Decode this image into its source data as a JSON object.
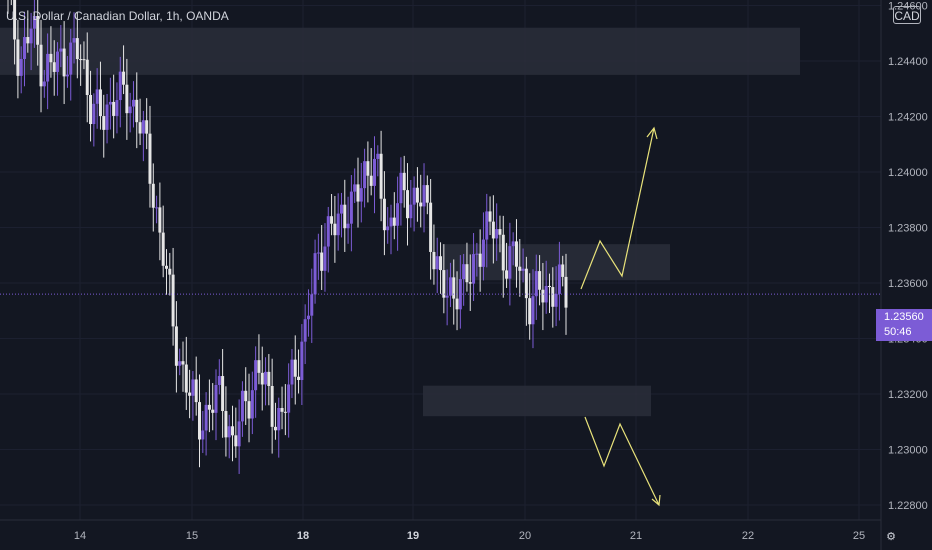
{
  "header": {
    "title": "U.S. Dollar / Canadian Dollar, 1h, OANDA",
    "currency": "CAD"
  },
  "price_tag": {
    "price": "1.23560",
    "countdown": "50:46"
  },
  "colors": {
    "background": "#131722",
    "bull": "#7c5cd6",
    "bear": "#e6e6e6",
    "zone": "#2a2e39",
    "arrow": "#e8e27a",
    "text": "#b2b5be"
  },
  "chart_data": {
    "type": "candlestick",
    "symbol": "USDCAD",
    "timeframe": "1h",
    "ylim": [
      1.227,
      1.251
    ],
    "y_ticks": [
      "1.24600",
      "1.24400",
      "1.24200",
      "1.24000",
      "1.23800",
      "1.23600",
      "1.23400",
      "1.23200",
      "1.23000",
      "1.22800"
    ],
    "x_ticks": [
      "14",
      "15",
      "18",
      "19",
      "20",
      "21",
      "22",
      "25"
    ],
    "current_price": 1.2356,
    "closes": [
      1.2463,
      1.244,
      1.2452,
      1.2437,
      1.2438,
      1.2443,
      1.2442,
      1.2426,
      1.2417,
      1.243,
      1.2425,
      1.2423,
      1.2397,
      1.2375,
      1.234,
      1.2325,
      1.231,
      1.2315,
      1.232,
      1.23,
      1.2318,
      1.2328,
      1.232,
      1.2307,
      1.233,
      1.2338,
      1.2372,
      1.2375,
      1.2387,
      1.2385,
      1.2402,
      1.24,
      1.238,
      1.239,
      1.2392,
      1.2389,
      1.237,
      1.2352,
      1.2362,
      1.236,
      1.238,
      1.2378,
      1.2369,
      1.2367,
      1.2353,
      1.2357,
      1.2359,
      1.2356
    ],
    "zones": [
      {
        "from_x": 0,
        "to_x": 800,
        "top": 1.2452,
        "bottom": 1.2435
      },
      {
        "from_x": 442,
        "to_x": 670,
        "top": 1.2374,
        "bottom": 1.2361
      },
      {
        "from_x": 423,
        "to_x": 651,
        "top": 1.2323,
        "bottom": 1.2312
      }
    ]
  }
}
